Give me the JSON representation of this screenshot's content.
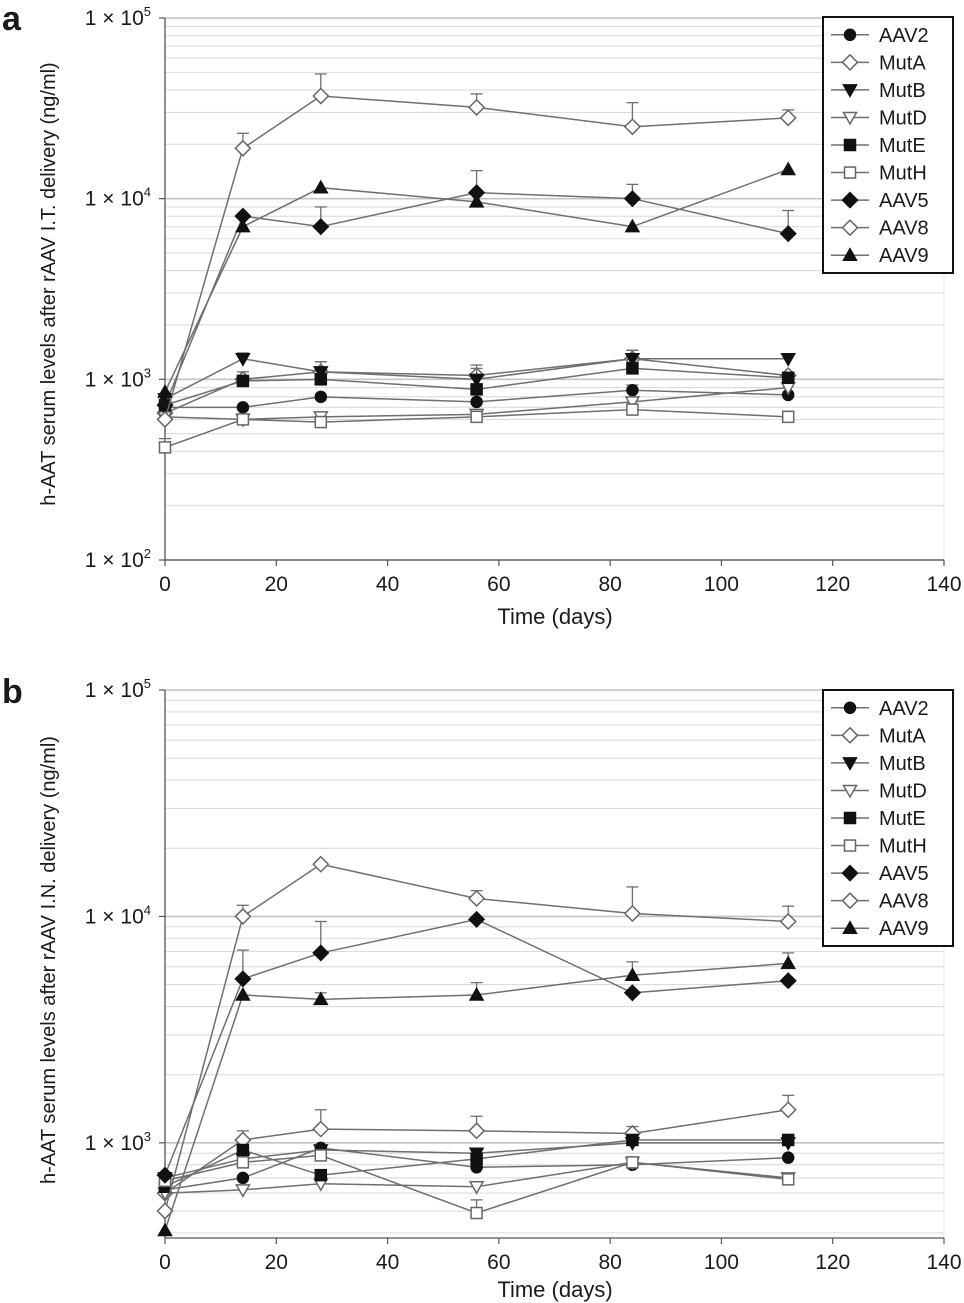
{
  "chart_data": [
    {
      "type": "line",
      "panel_label": "a",
      "title": "",
      "xlabel": "Time (days)",
      "ylabel": "h-AAT serum levels after rAAV I.T. delivery (ng/ml)",
      "yscale": "log",
      "xlim": [
        0,
        140
      ],
      "ylim": [
        100,
        100000
      ],
      "x_ticks": [
        "0",
        "20",
        "40",
        "60",
        "80",
        "100",
        "120",
        "140"
      ],
      "y_ticks": [
        {
          "value": 100,
          "label": "1 × 10²"
        },
        {
          "value": 1000,
          "label": "1 × 10³"
        },
        {
          "value": 10000,
          "label": "1 × 10⁴"
        },
        {
          "value": 100000,
          "label": "1 × 10⁵"
        }
      ],
      "legend_position": "top-right",
      "x": [
        0,
        14,
        28,
        56,
        84,
        112
      ],
      "series": [
        {
          "name": "AAV2",
          "marker": "circle",
          "filled": true,
          "values": [
            700,
            700,
            800,
            750,
            870,
            820
          ],
          "errors": [
            0,
            0,
            0,
            0,
            60,
            0
          ]
        },
        {
          "name": "MutA",
          "marker": "diamond",
          "filled": false,
          "values": [
            650,
            1000,
            1100,
            1050,
            1300,
            1050
          ],
          "errors": [
            0,
            100,
            150,
            150,
            150,
            0
          ]
        },
        {
          "name": "MutB",
          "marker": "triangle-down",
          "filled": true,
          "values": [
            780,
            1300,
            1100,
            1000,
            1300,
            1300
          ],
          "errors": [
            0,
            100,
            150,
            150,
            150,
            0
          ]
        },
        {
          "name": "MutD",
          "marker": "triangle-down",
          "filled": false,
          "values": [
            620,
            600,
            620,
            640,
            750,
            900
          ],
          "errors": [
            0,
            0,
            0,
            0,
            0,
            0
          ]
        },
        {
          "name": "MutE",
          "marker": "square",
          "filled": true,
          "values": [
            720,
            980,
            1000,
            880,
            1150,
            1020
          ],
          "errors": [
            0,
            0,
            0,
            0,
            0,
            0
          ]
        },
        {
          "name": "MutH",
          "marker": "square",
          "filled": false,
          "values": [
            420,
            600,
            580,
            620,
            680,
            620
          ],
          "errors": [
            50,
            0,
            30,
            0,
            50,
            0
          ]
        },
        {
          "name": "AAV5",
          "marker": "diamond",
          "filled": true,
          "values": [
            720,
            8000,
            7000,
            10800,
            10000,
            6400
          ],
          "errors": [
            0,
            0,
            2000,
            3500,
            2000,
            2200
          ]
        },
        {
          "name": "AAV8",
          "marker": "diamond",
          "filled": false,
          "values": [
            600,
            19000,
            37000,
            32000,
            25000,
            28000
          ],
          "errors": [
            0,
            4000,
            12000,
            6000,
            9000,
            3000
          ]
        },
        {
          "name": "AAV9",
          "marker": "triangle-up",
          "filled": true,
          "values": [
            850,
            7000,
            11500,
            9600,
            7000,
            14500
          ],
          "errors": [
            0,
            0,
            0,
            0,
            0,
            0
          ]
        }
      ]
    },
    {
      "type": "line",
      "panel_label": "b",
      "title": "",
      "xlabel": "Time (days)",
      "ylabel": "h-AAT serum levels after rAAV I.N. delivery (ng/ml)",
      "yscale": "log",
      "xlim": [
        0,
        140
      ],
      "ylim": [
        380,
        100000
      ],
      "x_ticks": [
        "0",
        "20",
        "40",
        "60",
        "80",
        "100",
        "120",
        "140"
      ],
      "y_ticks": [
        {
          "value": 1000,
          "label": "1 × 10³"
        },
        {
          "value": 10000,
          "label": "1 × 10⁴"
        },
        {
          "value": 100000,
          "label": "1 × 10⁵"
        }
      ],
      "legend_position": "top-right",
      "x": [
        0,
        14,
        28,
        56,
        84,
        112
      ],
      "series": [
        {
          "name": "AAV2",
          "marker": "circle",
          "filled": true,
          "values": [
            620,
            700,
            950,
            780,
            800,
            860
          ],
          "errors": [
            0,
            0,
            0,
            0,
            0,
            0
          ]
        },
        {
          "name": "MutA",
          "marker": "diamond",
          "filled": false,
          "values": [
            600,
            1030,
            1150,
            1130,
            1100,
            1400
          ],
          "errors": [
            0,
            100,
            250,
            180,
            80,
            220
          ]
        },
        {
          "name": "MutB",
          "marker": "triangle-down",
          "filled": true,
          "values": [
            700,
            850,
            930,
            900,
            1000,
            1000
          ],
          "errors": [
            0,
            0,
            0,
            0,
            0,
            0
          ]
        },
        {
          "name": "MutD",
          "marker": "triangle-down",
          "filled": false,
          "values": [
            600,
            620,
            660,
            640,
            820,
            700
          ],
          "errors": [
            0,
            0,
            0,
            0,
            0,
            0
          ]
        },
        {
          "name": "MutE",
          "marker": "square",
          "filled": true,
          "values": [
            640,
            930,
            720,
            850,
            1030,
            1030
          ],
          "errors": [
            0,
            0,
            0,
            0,
            0,
            0
          ]
        },
        {
          "name": "MutH",
          "marker": "square",
          "filled": false,
          "values": [
            680,
            820,
            880,
            490,
            820,
            690
          ],
          "errors": [
            0,
            0,
            0,
            70,
            0,
            0
          ]
        },
        {
          "name": "AAV5",
          "marker": "diamond",
          "filled": true,
          "values": [
            720,
            5300,
            6900,
            9700,
            4600,
            5200
          ],
          "errors": [
            0,
            1800,
            2600,
            0,
            0,
            0
          ]
        },
        {
          "name": "AAV8",
          "marker": "diamond",
          "filled": false,
          "values": [
            500,
            10000,
            17000,
            12000,
            10300,
            9500
          ],
          "errors": [
            0,
            1200,
            0,
            1000,
            3200,
            1600
          ]
        },
        {
          "name": "AAV9",
          "marker": "triangle-up",
          "filled": true,
          "values": [
            410,
            4500,
            4300,
            4500,
            5500,
            6200
          ],
          "errors": [
            0,
            0,
            300,
            600,
            800,
            700
          ]
        }
      ]
    }
  ]
}
